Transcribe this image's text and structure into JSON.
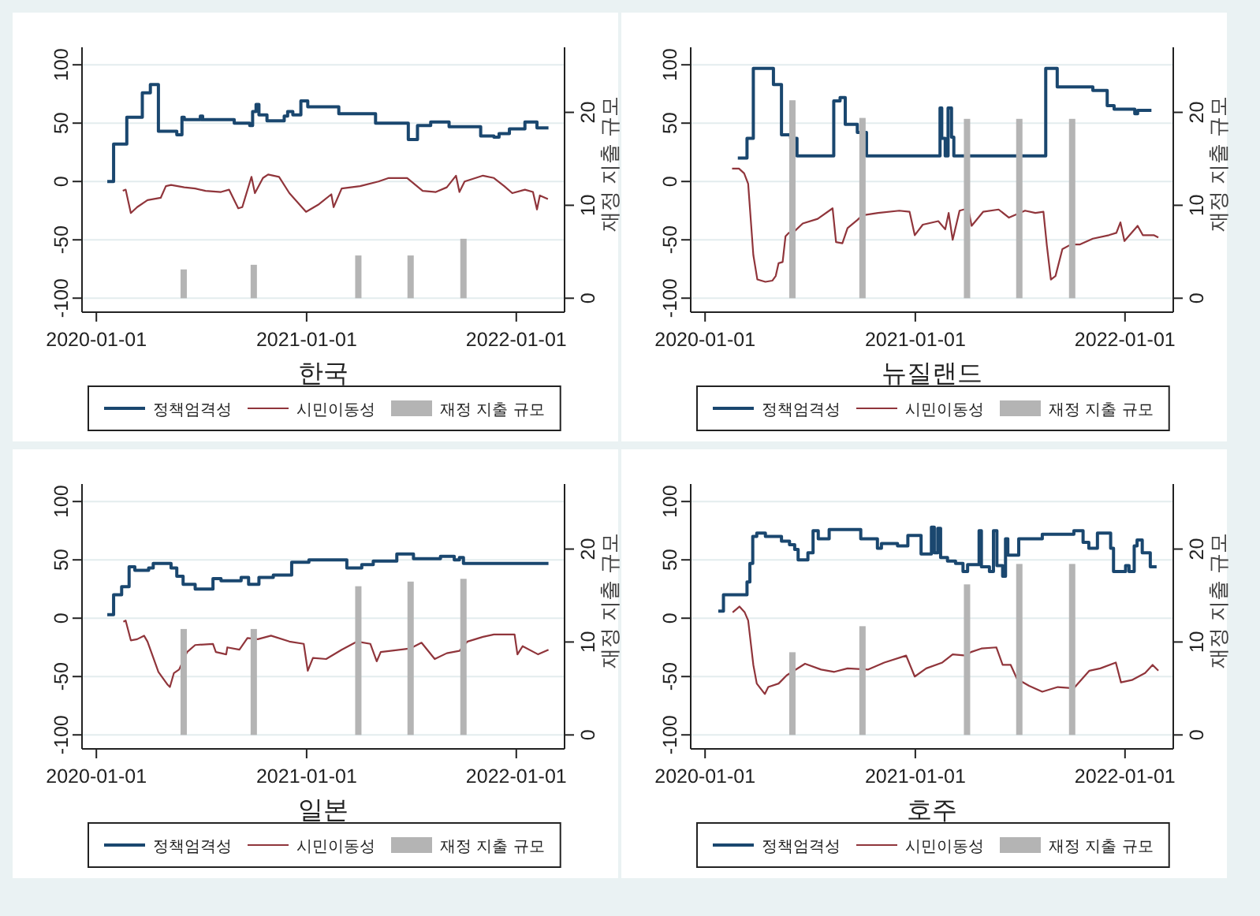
{
  "chart_data": [
    {
      "type": "line",
      "xlabel": "한국",
      "y2label": "재정 지출 규모",
      "xlim": [
        "2019-12-07",
        "2022-03-26"
      ],
      "xticks": [
        "2020-01-01",
        "2021-01-01",
        "2022-01-01"
      ],
      "ylim": [
        -112,
        115
      ],
      "yticks": [
        -100,
        -50,
        0,
        50,
        100
      ],
      "y2lim": [
        -1.5,
        27
      ],
      "y2ticks": [
        0,
        10,
        20
      ],
      "grid": "y",
      "legend": "bottom",
      "series": [
        {
          "name": "정책엄격성",
          "type": "step",
          "color": "#1a476f",
          "x": [
            "2020-01-20",
            "2020-01-31",
            "2020-02-23",
            "2020-03-21",
            "2020-04-04",
            "2020-04-18",
            "2020-05-20",
            "2020-05-29",
            "2020-06-02",
            "2020-06-30",
            "2020-07-04",
            "2020-08-28",
            "2020-09-24",
            "2020-09-29",
            "2020-10-05",
            "2020-10-10",
            "2020-10-24",
            "2020-11-23",
            "2020-11-29",
            "2020-12-08",
            "2020-12-22",
            "2021-01-03",
            "2021-02-26",
            "2021-05-01",
            "2021-06-27",
            "2021-07-13",
            "2021-08-05",
            "2021-09-06",
            "2021-10-31",
            "2021-11-23",
            "2021-12-02",
            "2021-12-20",
            "2022-01-16",
            "2022-02-06",
            "2022-02-26"
          ],
          "values": [
            0,
            32,
            55,
            76,
            83,
            43,
            40,
            55,
            53,
            56,
            53,
            50,
            48,
            60,
            66,
            57,
            52,
            56,
            60,
            57,
            69,
            64,
            58,
            50,
            36,
            48,
            51,
            47,
            39,
            38,
            41,
            45,
            51,
            46,
            46
          ]
        },
        {
          "name": "시민이동성",
          "color": "#90353b",
          "x": [
            "2020-02-16",
            "2020-02-21",
            "2020-03-01",
            "2020-03-12",
            "2020-03-30",
            "2020-04-22",
            "2020-05-01",
            "2020-05-10",
            "2020-06-02",
            "2020-06-21",
            "2020-07-09",
            "2020-08-05",
            "2020-08-19",
            "2020-09-04",
            "2020-09-11",
            "2020-09-27",
            "2020-10-03",
            "2020-10-17",
            "2020-10-26",
            "2020-11-14",
            "2020-12-02",
            "2020-12-31",
            "2021-01-21",
            "2021-02-13",
            "2021-02-17",
            "2021-03-03",
            "2021-04-04",
            "2021-05-06",
            "2021-05-24",
            "2021-06-25",
            "2021-07-22",
            "2021-08-14",
            "2021-09-02",
            "2021-09-18",
            "2021-09-24",
            "2021-10-03",
            "2021-11-04",
            "2021-11-23",
            "2021-12-11",
            "2021-12-25",
            "2022-01-16",
            "2022-01-30",
            "2022-02-06",
            "2022-02-11",
            "2022-02-25"
          ],
          "values": [
            -8,
            -7,
            -27,
            -22,
            -16,
            -14,
            -4,
            -3,
            -5,
            -6,
            -8,
            -9,
            -7,
            -23,
            -22,
            4,
            -10,
            3,
            6,
            4,
            -10,
            -26,
            -20,
            -11,
            -22,
            -6,
            -4,
            0,
            3,
            3,
            -8,
            -9,
            -5,
            5,
            -9,
            0,
            5,
            3,
            -4,
            -10,
            -7,
            -9,
            -24,
            -12,
            -15
          ]
        },
        {
          "name": "재정 지출 규모",
          "type": "bar",
          "axis": "y2",
          "color": "#b4b4b4",
          "x": [
            "2020-06-01",
            "2020-10-01",
            "2021-04-01",
            "2021-07-01",
            "2021-10-01"
          ],
          "values": [
            3.1,
            3.6,
            4.6,
            4.6,
            6.4
          ]
        }
      ]
    },
    {
      "type": "line",
      "xlabel": "뉴질랜드",
      "y2label": "재정 지출 규모",
      "xlim": [
        "2019-12-07",
        "2022-03-26"
      ],
      "xticks": [
        "2020-01-01",
        "2021-01-01",
        "2022-01-01"
      ],
      "ylim": [
        -112,
        115
      ],
      "yticks": [
        -100,
        -50,
        0,
        50,
        100
      ],
      "y2lim": [
        -1.5,
        27
      ],
      "y2ticks": [
        0,
        10,
        20
      ],
      "grid": "y",
      "legend": "bottom",
      "series": [
        {
          "name": "정책엄격성",
          "type": "step",
          "color": "#1a476f",
          "x": [
            "2020-02-27",
            "2020-03-14",
            "2020-03-25",
            "2020-04-29",
            "2020-05-13",
            "2020-05-29",
            "2020-06-09",
            "2020-08-12",
            "2020-08-23",
            "2020-09-01",
            "2020-09-22",
            "2020-10-08",
            "2021-02-13",
            "2021-02-16",
            "2021-02-22",
            "2021-02-27",
            "2021-03-05",
            "2021-03-09",
            "2021-08-16",
            "2021-09-05",
            "2021-11-06",
            "2021-12-01",
            "2021-12-13",
            "2022-01-18",
            "2022-01-23",
            "2022-02-16"
          ],
          "values": [
            20,
            37,
            97,
            83,
            40,
            37,
            22,
            69,
            72,
            49,
            42,
            22,
            63,
            37,
            22,
            63,
            38,
            22,
            97,
            81,
            78,
            65,
            62,
            58,
            61,
            61
          ]
        },
        {
          "name": "시민이동성",
          "color": "#90353b",
          "x": [
            "2020-02-17",
            "2020-02-29",
            "2020-03-09",
            "2020-03-16",
            "2020-03-25",
            "2020-04-01",
            "2020-04-15",
            "2020-04-27",
            "2020-05-03",
            "2020-05-08",
            "2020-05-15",
            "2020-05-20",
            "2020-05-26",
            "2020-06-04",
            "2020-06-19",
            "2020-07-15",
            "2020-08-10",
            "2020-08-16",
            "2020-08-27",
            "2020-09-05",
            "2020-09-22",
            "2020-10-01",
            "2020-10-28",
            "2020-12-04",
            "2020-12-22",
            "2020-12-31",
            "2021-01-14",
            "2021-02-10",
            "2021-02-22",
            "2021-02-28",
            "2021-03-07",
            "2021-03-19",
            "2021-04-03",
            "2021-04-09",
            "2021-04-29",
            "2021-05-26",
            "2021-06-13",
            "2021-07-11",
            "2021-07-29",
            "2021-08-12",
            "2021-08-18",
            "2021-08-25",
            "2021-09-02",
            "2021-09-14",
            "2021-09-29",
            "2021-10-14",
            "2021-11-06",
            "2021-12-04",
            "2021-12-17",
            "2021-12-24",
            "2021-12-31",
            "2022-01-23",
            "2022-02-01",
            "2022-02-20",
            "2022-02-28"
          ],
          "values": [
            11,
            11,
            7,
            -2,
            -63,
            -84,
            -86,
            -85,
            -81,
            -70,
            -69,
            -47,
            -44,
            -43,
            -36,
            -32,
            -23,
            -52,
            -53,
            -40,
            -33,
            -29,
            -27,
            -25,
            -26,
            -46,
            -37,
            -34,
            -41,
            -27,
            -50,
            -25,
            -23,
            -38,
            -26,
            -24,
            -31,
            -25,
            -27,
            -26,
            -55,
            -84,
            -81,
            -58,
            -54,
            -54,
            -49,
            -46,
            -44,
            -35,
            -51,
            -38,
            -46,
            -46,
            -48
          ]
        },
        {
          "name": "재정 지출 규모",
          "type": "bar",
          "axis": "y2",
          "color": "#b4b4b4",
          "x": [
            "2020-06-01",
            "2020-10-01",
            "2021-04-01",
            "2021-07-01",
            "2021-10-01"
          ],
          "values": [
            21.3,
            19.4,
            19.3,
            19.3,
            19.3
          ]
        }
      ]
    },
    {
      "type": "line",
      "xlabel": "일본",
      "y2label": "재정 지출 규모",
      "xlim": [
        "2019-12-07",
        "2022-03-26"
      ],
      "xticks": [
        "2020-01-01",
        "2021-01-01",
        "2022-01-01"
      ],
      "ylim": [
        -112,
        115
      ],
      "yticks": [
        -100,
        -50,
        0,
        50,
        100
      ],
      "y2lim": [
        -1.5,
        27
      ],
      "y2ticks": [
        0,
        10,
        20
      ],
      "grid": "y",
      "legend": "bottom",
      "series": [
        {
          "name": "정책엄격성",
          "type": "step",
          "color": "#1a476f",
          "x": [
            "2020-01-20",
            "2020-01-31",
            "2020-02-14",
            "2020-02-27",
            "2020-03-08",
            "2020-04-01",
            "2020-04-09",
            "2020-05-10",
            "2020-05-20",
            "2020-05-31",
            "2020-06-21",
            "2020-07-22",
            "2020-08-05",
            "2020-09-09",
            "2020-09-22",
            "2020-10-10",
            "2020-11-04",
            "2020-12-06",
            "2021-01-05",
            "2021-03-12",
            "2021-04-07",
            "2021-04-27",
            "2021-06-07",
            "2021-07-06",
            "2021-08-22",
            "2021-09-15",
            "2021-09-24",
            "2021-10-01",
            "2022-02-26"
          ],
          "values": [
            3,
            20,
            27,
            44,
            41,
            43,
            47,
            43,
            36,
            29,
            25,
            34,
            32,
            35,
            29,
            35,
            37,
            48,
            50,
            43,
            46,
            49,
            55,
            51,
            53,
            50,
            52,
            47,
            47
          ]
        },
        {
          "name": "시민이동성",
          "color": "#90353b",
          "x": [
            "2020-02-17",
            "2020-02-21",
            "2020-03-01",
            "2020-03-12",
            "2020-03-24",
            "2020-03-30",
            "2020-04-18",
            "2020-05-04",
            "2020-05-08",
            "2020-05-15",
            "2020-05-24",
            "2020-06-07",
            "2020-06-21",
            "2020-07-22",
            "2020-07-27",
            "2020-08-14",
            "2020-08-16",
            "2020-09-06",
            "2020-09-20",
            "2020-10-08",
            "2020-10-31",
            "2020-12-02",
            "2020-12-27",
            "2021-01-03",
            "2021-01-12",
            "2021-02-04",
            "2021-03-03",
            "2021-03-30",
            "2021-04-22",
            "2021-05-03",
            "2021-05-10",
            "2021-06-30",
            "2021-07-20",
            "2021-08-12",
            "2021-09-02",
            "2021-09-24",
            "2021-10-08",
            "2021-11-04",
            "2021-11-23",
            "2021-12-29",
            "2022-01-03",
            "2022-01-12",
            "2022-02-08",
            "2022-02-26"
          ],
          "values": [
            -3,
            -2,
            -19,
            -18,
            -15,
            -20,
            -46,
            -57,
            -59,
            -47,
            -44,
            -29,
            -23,
            -22,
            -29,
            -31,
            -25,
            -27,
            -17,
            -18,
            -15,
            -20,
            -22,
            -45,
            -34,
            -35,
            -27,
            -20,
            -22,
            -37,
            -29,
            -26,
            -21,
            -35,
            -30,
            -28,
            -20,
            -16,
            -14,
            -14,
            -31,
            -24,
            -31,
            -27
          ]
        },
        {
          "name": "재정 지출 규모",
          "type": "bar",
          "axis": "y2",
          "color": "#b4b4b4",
          "x": [
            "2020-06-01",
            "2020-10-01",
            "2021-04-01",
            "2021-07-01",
            "2021-10-01"
          ],
          "values": [
            11.4,
            11.4,
            16,
            16.5,
            16.8
          ]
        }
      ]
    },
    {
      "type": "line",
      "xlabel": "호주",
      "y2label": "재정 지출 규모",
      "xlim": [
        "2019-12-07",
        "2022-03-26"
      ],
      "xticks": [
        "2020-01-01",
        "2021-01-01",
        "2022-01-01"
      ],
      "ylim": [
        -112,
        115
      ],
      "yticks": [
        -100,
        -50,
        0,
        50,
        100
      ],
      "y2lim": [
        -1.5,
        27
      ],
      "y2ticks": [
        0,
        10,
        20
      ],
      "grid": "y",
      "legend": "bottom",
      "series": [
        {
          "name": "정책엄격성",
          "type": "step",
          "color": "#1a476f",
          "x": [
            "2020-01-24",
            "2020-02-02",
            "2020-03-14",
            "2020-03-19",
            "2020-03-24",
            "2020-03-31",
            "2020-04-15",
            "2020-05-13",
            "2020-05-27",
            "2020-06-05",
            "2020-06-11",
            "2020-06-28",
            "2020-07-07",
            "2020-07-16",
            "2020-08-04",
            "2020-09-28",
            "2020-10-27",
            "2020-11-03",
            "2020-12-01",
            "2020-12-19",
            "2021-01-11",
            "2021-01-29",
            "2021-02-03",
            "2021-02-09",
            "2021-02-14",
            "2021-02-26",
            "2021-03-12",
            "2021-03-25",
            "2021-04-02",
            "2021-04-22",
            "2021-04-26",
            "2021-05-10",
            "2021-05-17",
            "2021-05-23",
            "2021-06-02",
            "2021-06-07",
            "2021-06-11",
            "2021-06-30",
            "2021-08-10",
            "2021-10-04",
            "2021-10-20",
            "2021-10-30",
            "2021-11-14",
            "2021-12-07",
            "2021-12-12",
            "2022-01-02",
            "2022-01-08",
            "2022-01-17",
            "2022-01-22",
            "2022-01-31",
            "2022-02-14",
            "2022-02-25"
          ],
          "values": [
            6,
            20,
            31,
            47,
            70,
            73,
            70,
            66,
            63,
            59,
            50,
            56,
            75,
            68,
            76,
            68,
            60,
            64,
            62,
            71,
            55,
            78,
            56,
            77,
            52,
            49,
            47,
            40,
            46,
            75,
            44,
            40,
            75,
            45,
            36,
            68,
            54,
            68,
            72,
            75,
            65,
            60,
            73,
            60,
            40,
            45,
            40,
            62,
            67,
            56,
            44,
            44
          ]
        },
        {
          "name": "시민이동성",
          "color": "#90353b",
          "x": [
            "2020-02-18",
            "2020-03-01",
            "2020-03-10",
            "2020-03-16",
            "2020-03-25",
            "2020-03-31",
            "2020-04-14",
            "2020-04-20",
            "2020-05-08",
            "2020-05-22",
            "2020-06-23",
            "2020-07-21",
            "2020-08-13",
            "2020-09-05",
            "2020-10-11",
            "2020-11-08",
            "2020-12-16",
            "2020-12-31",
            "2021-01-20",
            "2021-02-17",
            "2021-03-07",
            "2021-03-30",
            "2021-04-08",
            "2021-04-26",
            "2021-05-22",
            "2021-06-02",
            "2021-06-16",
            "2021-06-27",
            "2021-07-18",
            "2021-08-10",
            "2021-09-06",
            "2021-10-04",
            "2021-10-31",
            "2021-11-19",
            "2021-12-16",
            "2021-12-25",
            "2022-01-13",
            "2022-02-05",
            "2022-02-18",
            "2022-02-28"
          ],
          "values": [
            5,
            10,
            5,
            -2,
            -40,
            -56,
            -65,
            -59,
            -56,
            -49,
            -39,
            -44,
            -46,
            -43,
            -44,
            -38,
            -32,
            -50,
            -43,
            -38,
            -31,
            -32,
            -29,
            -26,
            -25,
            -40,
            -40,
            -52,
            -58,
            -63,
            -59,
            -60,
            -45,
            -43,
            -38,
            -55,
            -53,
            -47,
            -40,
            -45
          ]
        },
        {
          "name": "재정 지출 규모",
          "type": "bar",
          "axis": "y2",
          "color": "#b4b4b4",
          "x": [
            "2020-06-01",
            "2020-10-01",
            "2021-04-01",
            "2021-07-01",
            "2021-10-01"
          ],
          "values": [
            8.9,
            11.7,
            16.2,
            18.4,
            18.4
          ]
        }
      ]
    }
  ]
}
